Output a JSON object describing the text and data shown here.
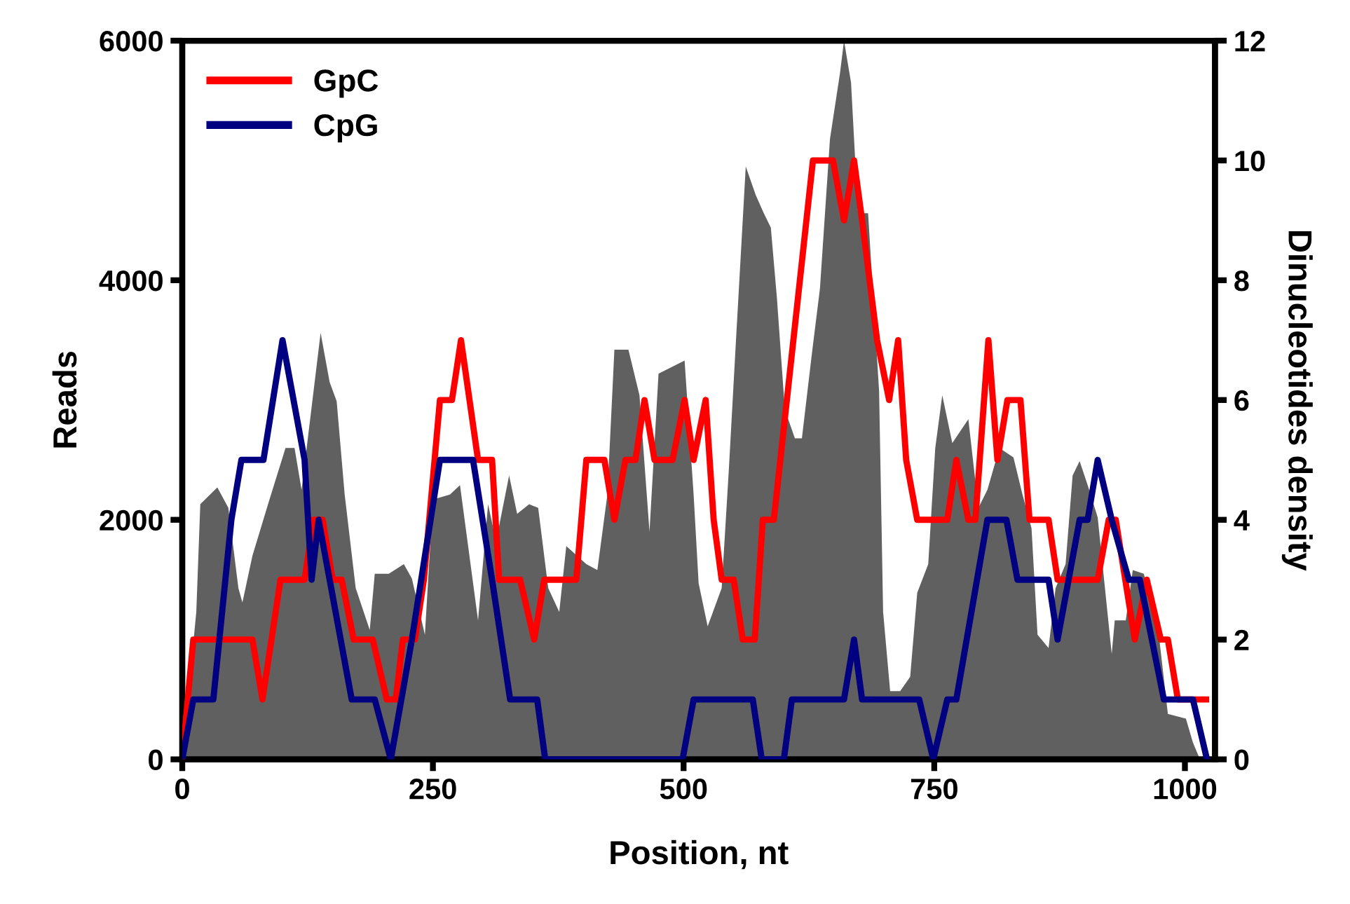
{
  "chart_data": {
    "type": "line",
    "xlabel": "Position, nt",
    "ylabel": "Reads",
    "y2label": "Dinucleotides density",
    "xlim": [
      0,
      1030
    ],
    "xticks": [
      0,
      250,
      500,
      750,
      1000
    ],
    "ylim": [
      0,
      6000
    ],
    "yticks": [
      0,
      2000,
      4000,
      6000
    ],
    "y2lim": [
      0,
      12
    ],
    "y2ticks": [
      0,
      2,
      4,
      6,
      8,
      10,
      12
    ],
    "grid": false,
    "legend": "top left",
    "marker": "none",
    "line_style": "solid",
    "series": [
      {
        "type": "area",
        "color": "#606060",
        "axis": "y",
        "x": [
          0,
          14,
          18,
          35,
          46,
          56,
          60,
          70,
          87,
          103,
          112,
          119,
          138,
          147,
          154,
          162,
          173,
          187,
          192,
          206,
          221,
          229,
          242,
          250,
          267,
          277,
          295,
          305,
          313,
          326,
          334,
          346,
          355,
          365,
          376,
          383,
          403,
          414,
          424,
          431,
          445,
          456,
          466,
          475,
          501,
          510,
          515,
          524,
          538,
          545,
          552,
          562,
          572,
          580,
          587,
          593,
          601,
          611,
          618,
          628,
          636,
          646,
          656,
          660,
          667,
          674,
          684,
          695,
          699,
          706,
          716,
          726,
          733,
          744,
          751,
          758,
          768,
          784,
          794,
          803,
          815,
          829,
          838,
          847,
          853,
          864,
          871,
          881,
          888,
          895,
          903,
          913,
          927,
          930,
          941,
          948,
          959,
          973,
          983,
          1001,
          1008,
          1015
        ],
        "values": [
          0,
          1230,
          2130,
          2270,
          2100,
          1430,
          1310,
          1700,
          2170,
          2600,
          2600,
          2250,
          3560,
          3150,
          2990,
          2210,
          1430,
          1080,
          1550,
          1550,
          1630,
          1510,
          1040,
          2170,
          2210,
          2290,
          1160,
          2130,
          1820,
          2370,
          2050,
          2130,
          2100,
          1430,
          1230,
          1780,
          1630,
          1580,
          2210,
          3420,
          3420,
          3040,
          1900,
          3220,
          3330,
          2210,
          1470,
          1110,
          1430,
          2400,
          3460,
          4950,
          4710,
          4560,
          4440,
          3860,
          2920,
          2680,
          2680,
          3390,
          3930,
          5180,
          5730,
          6000,
          5650,
          4560,
          4560,
          3070,
          1230,
          570,
          570,
          690,
          1390,
          1630,
          2600,
          3040,
          2640,
          2840,
          2100,
          2250,
          2600,
          2520,
          2210,
          1930,
          1040,
          930,
          1430,
          1630,
          2370,
          2490,
          2290,
          2020,
          880,
          1160,
          1160,
          1580,
          1550,
          1110,
          380,
          340,
          140,
          0
        ]
      },
      {
        "name": "GpC",
        "color": "#ff0000",
        "axis": "y2",
        "x": [
          0,
          11,
          70,
          80,
          98,
          122,
          131,
          140,
          150,
          159,
          171,
          190,
          204,
          213,
          220,
          232,
          241,
          257,
          269,
          278,
          295,
          309,
          316,
          337,
          351,
          361,
          393,
          403,
          421,
          431,
          442,
          452,
          461,
          471,
          489,
          501,
          510,
          522,
          530,
          538,
          550,
          559,
          571,
          579,
          590,
          629,
          649,
          660,
          670,
          678,
          693,
          705,
          714,
          722,
          733,
          763,
          772,
          784,
          791,
          804,
          813,
          823,
          836,
          845,
          864,
          873,
          913,
          924,
          931,
          950,
          962,
          976,
          983,
          993,
          1021
        ],
        "values": [
          0,
          2,
          2,
          1,
          3,
          3,
          4,
          4,
          3,
          3,
          2,
          2,
          1,
          1,
          2,
          2,
          3,
          6,
          6,
          7,
          5,
          5,
          3,
          3,
          2,
          3,
          3,
          5,
          5,
          4,
          5,
          5,
          6,
          5,
          5,
          6,
          5,
          6,
          4,
          3,
          3,
          2,
          2,
          4,
          4,
          10,
          10,
          9,
          10,
          9,
          7,
          6,
          7,
          5,
          4,
          4,
          5,
          4,
          4,
          7,
          5,
          6,
          6,
          4,
          4,
          3,
          3,
          4,
          4,
          2,
          3,
          2,
          2,
          1,
          1
        ]
      },
      {
        "name": "CpG",
        "color": "#000080",
        "axis": "y2",
        "x": [
          0,
          11,
          31,
          49,
          59,
          81,
          100,
          122,
          129,
          136,
          169,
          192,
          208,
          229,
          257,
          290,
          309,
          327,
          354,
          362,
          499,
          510,
          569,
          578,
          600,
          608,
          660,
          670,
          678,
          684,
          735,
          749,
          763,
          772,
          803,
          822,
          833,
          864,
          873,
          895,
          903,
          913,
          927,
          944,
          955,
          979,
          1008,
          1022
        ],
        "values": [
          0,
          1,
          1,
          4,
          5,
          5,
          7,
          5,
          3,
          4,
          1,
          1,
          0,
          2,
          5,
          5,
          3,
          1,
          1,
          0,
          0,
          1,
          1,
          0,
          0,
          1,
          1,
          2,
          1,
          1,
          1,
          0,
          1,
          1,
          4,
          4,
          3,
          3,
          2,
          4,
          4,
          5,
          4,
          3,
          3,
          1,
          1,
          0
        ]
      }
    ]
  }
}
